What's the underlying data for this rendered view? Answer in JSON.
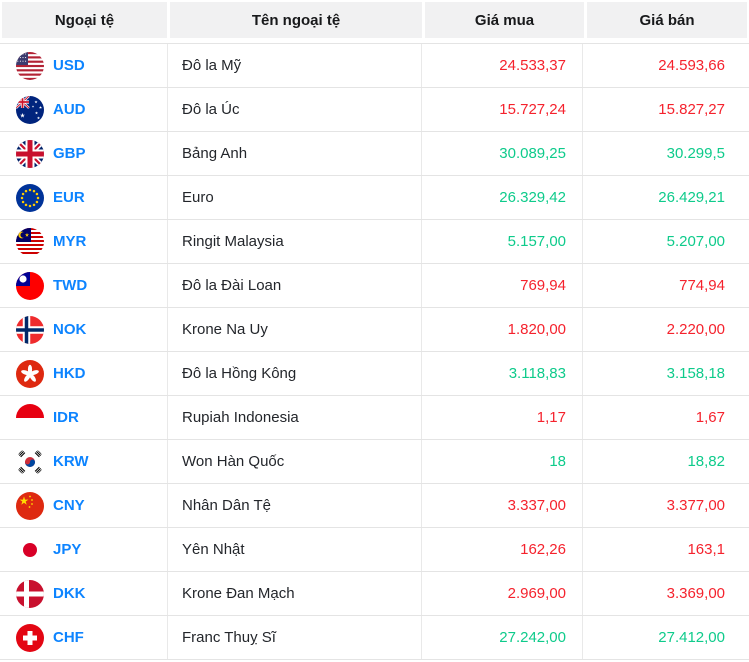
{
  "table": {
    "headers": [
      {
        "label": "Ngoại tệ"
      },
      {
        "label": "Tên ngoại tệ"
      },
      {
        "label": "Giá mua"
      },
      {
        "label": "Giá bán"
      }
    ]
  },
  "rows": [
    {
      "code": "USD",
      "name": "Đô la Mỹ",
      "buy": "24.533,37",
      "sell": "24.593,66",
      "color": "red",
      "flag": "us"
    },
    {
      "code": "AUD",
      "name": "Đô la Úc",
      "buy": "15.727,24",
      "sell": "15.827,27",
      "color": "red",
      "flag": "au"
    },
    {
      "code": "GBP",
      "name": "Bảng Anh",
      "buy": "30.089,25",
      "sell": "30.299,5",
      "color": "green",
      "flag": "gb"
    },
    {
      "code": "EUR",
      "name": "Euro",
      "buy": "26.329,42",
      "sell": "26.429,21",
      "color": "green",
      "flag": "eu"
    },
    {
      "code": "MYR",
      "name": "Ringit Malaysia",
      "buy": "5.157,00",
      "sell": "5.207,00",
      "color": "green",
      "flag": "my"
    },
    {
      "code": "TWD",
      "name": "Đô la Đài Loan",
      "buy": "769,94",
      "sell": "774,94",
      "color": "red",
      "flag": "tw"
    },
    {
      "code": "NOK",
      "name": "Krone Na Uy",
      "buy": "1.820,00",
      "sell": "2.220,00",
      "color": "red",
      "flag": "no"
    },
    {
      "code": "HKD",
      "name": "Đô la Hồng Kông",
      "buy": "3.118,83",
      "sell": "3.158,18",
      "color": "green",
      "flag": "hk"
    },
    {
      "code": "IDR",
      "name": "Rupiah Indonesia",
      "buy": "1,17",
      "sell": "1,67",
      "color": "red",
      "flag": "id"
    },
    {
      "code": "KRW",
      "name": "Won Hàn Quốc",
      "buy": "18",
      "sell": "18,82",
      "color": "green",
      "flag": "kr"
    },
    {
      "code": "CNY",
      "name": "Nhân Dân Tệ",
      "buy": "3.337,00",
      "sell": "3.377,00",
      "color": "red",
      "flag": "cn"
    },
    {
      "code": "JPY",
      "name": "Yên Nhật",
      "buy": "162,26",
      "sell": "163,1",
      "color": "red",
      "flag": "jp"
    },
    {
      "code": "DKK",
      "name": "Krone Đan Mạch",
      "buy": "2.969,00",
      "sell": "3.369,00",
      "color": "red",
      "flag": "dk"
    },
    {
      "code": "CHF",
      "name": "Franc Thuỵ Sĩ",
      "buy": "27.242,00",
      "sell": "27.412,00",
      "color": "green",
      "flag": "ch"
    }
  ],
  "colors": {
    "value_red": "#f5222d",
    "value_green": "#0ecb8b",
    "currency_code_blue": "#0d84ff",
    "header_background": "#f1f1f2"
  }
}
